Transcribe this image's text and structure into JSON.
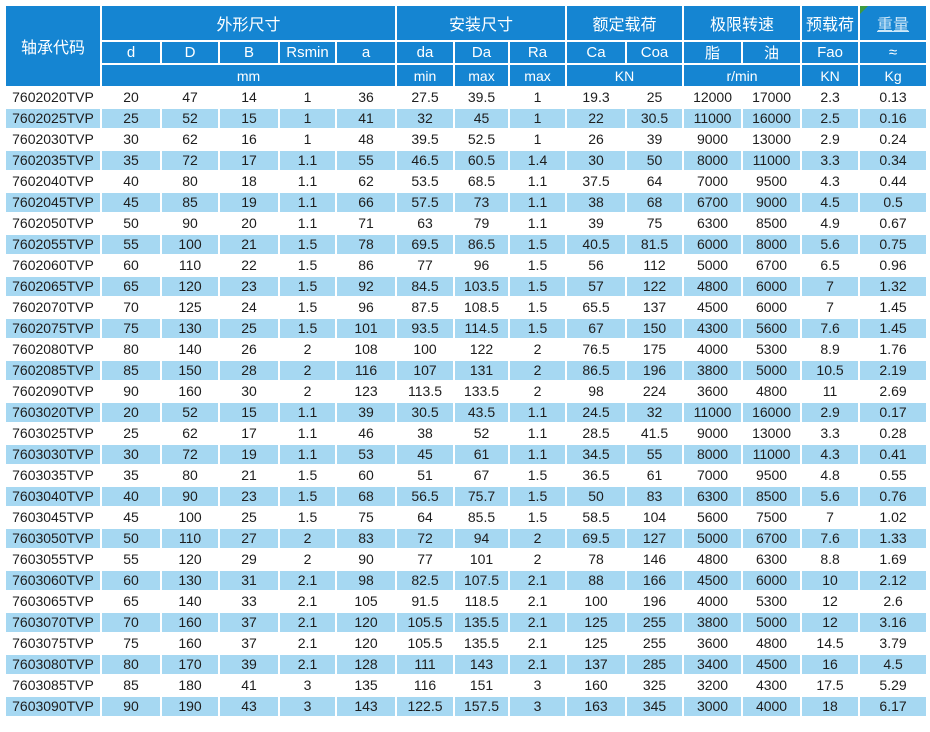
{
  "colors": {
    "header_bg": "#1585d2",
    "row_alt_bg": "#a6d8f2",
    "data_text": "#1d1d1d",
    "weight_link": "#cfe8f8",
    "marker_green": "#3f9b3f"
  },
  "header": {
    "code_label": "轴承代码",
    "groups": [
      {
        "label": "外形尺寸"
      },
      {
        "label": "安装尺寸"
      },
      {
        "label": "额定载荷"
      },
      {
        "label": "极限转速"
      },
      {
        "label": "预载荷"
      },
      {
        "label": "重量"
      }
    ],
    "sub": [
      "d",
      "D",
      "B",
      "Rsmin",
      "a",
      "da",
      "Da",
      "Ra",
      "Ca",
      "Coa",
      "脂",
      "油",
      "Fao",
      "≈"
    ],
    "units": [
      {
        "label": "mm"
      },
      {
        "label": "min"
      },
      {
        "label": "max"
      },
      {
        "label": "max"
      },
      {
        "label": "KN"
      },
      {
        "label": "r/min"
      },
      {
        "label": "KN"
      },
      {
        "label": "Kg"
      }
    ]
  },
  "rows": [
    [
      "7602020TVP",
      "20",
      "47",
      "14",
      "1",
      "36",
      "27.5",
      "39.5",
      "1",
      "19.3",
      "25",
      "12000",
      "17000",
      "2.3",
      "0.13"
    ],
    [
      "7602025TVP",
      "25",
      "52",
      "15",
      "1",
      "41",
      "32",
      "45",
      "1",
      "22",
      "30.5",
      "11000",
      "16000",
      "2.5",
      "0.16"
    ],
    [
      "7602030TVP",
      "30",
      "62",
      "16",
      "1",
      "48",
      "39.5",
      "52.5",
      "1",
      "26",
      "39",
      "9000",
      "13000",
      "2.9",
      "0.24"
    ],
    [
      "7602035TVP",
      "35",
      "72",
      "17",
      "1.1",
      "55",
      "46.5",
      "60.5",
      "1.4",
      "30",
      "50",
      "8000",
      "11000",
      "3.3",
      "0.34"
    ],
    [
      "7602040TVP",
      "40",
      "80",
      "18",
      "1.1",
      "62",
      "53.5",
      "68.5",
      "1.1",
      "37.5",
      "64",
      "7000",
      "9500",
      "4.3",
      "0.44"
    ],
    [
      "7602045TVP",
      "45",
      "85",
      "19",
      "1.1",
      "66",
      "57.5",
      "73",
      "1.1",
      "38",
      "68",
      "6700",
      "9000",
      "4.5",
      "0.5"
    ],
    [
      "7602050TVP",
      "50",
      "90",
      "20",
      "1.1",
      "71",
      "63",
      "79",
      "1.1",
      "39",
      "75",
      "6300",
      "8500",
      "4.9",
      "0.67"
    ],
    [
      "7602055TVP",
      "55",
      "100",
      "21",
      "1.5",
      "78",
      "69.5",
      "86.5",
      "1.5",
      "40.5",
      "81.5",
      "6000",
      "8000",
      "5.6",
      "0.75"
    ],
    [
      "7602060TVP",
      "60",
      "110",
      "22",
      "1.5",
      "86",
      "77",
      "96",
      "1.5",
      "56",
      "112",
      "5000",
      "6700",
      "6.5",
      "0.96"
    ],
    [
      "7602065TVP",
      "65",
      "120",
      "23",
      "1.5",
      "92",
      "84.5",
      "103.5",
      "1.5",
      "57",
      "122",
      "4800",
      "6000",
      "7",
      "1.32"
    ],
    [
      "7602070TVP",
      "70",
      "125",
      "24",
      "1.5",
      "96",
      "87.5",
      "108.5",
      "1.5",
      "65.5",
      "137",
      "4500",
      "6000",
      "7",
      "1.45"
    ],
    [
      "7602075TVP",
      "75",
      "130",
      "25",
      "1.5",
      "101",
      "93.5",
      "114.5",
      "1.5",
      "67",
      "150",
      "4300",
      "5600",
      "7.6",
      "1.45"
    ],
    [
      "7602080TVP",
      "80",
      "140",
      "26",
      "2",
      "108",
      "100",
      "122",
      "2",
      "76.5",
      "175",
      "4000",
      "5300",
      "8.9",
      "1.76"
    ],
    [
      "7602085TVP",
      "85",
      "150",
      "28",
      "2",
      "116",
      "107",
      "131",
      "2",
      "86.5",
      "196",
      "3800",
      "5000",
      "10.5",
      "2.19"
    ],
    [
      "7602090TVP",
      "90",
      "160",
      "30",
      "2",
      "123",
      "113.5",
      "133.5",
      "2",
      "98",
      "224",
      "3600",
      "4800",
      "11",
      "2.69"
    ],
    [
      "7603020TVP",
      "20",
      "52",
      "15",
      "1.1",
      "39",
      "30.5",
      "43.5",
      "1.1",
      "24.5",
      "32",
      "11000",
      "16000",
      "2.9",
      "0.17"
    ],
    [
      "7603025TVP",
      "25",
      "62",
      "17",
      "1.1",
      "46",
      "38",
      "52",
      "1.1",
      "28.5",
      "41.5",
      "9000",
      "13000",
      "3.3",
      "0.28"
    ],
    [
      "7603030TVP",
      "30",
      "72",
      "19",
      "1.1",
      "53",
      "45",
      "61",
      "1.1",
      "34.5",
      "55",
      "8000",
      "11000",
      "4.3",
      "0.41"
    ],
    [
      "7603035TVP",
      "35",
      "80",
      "21",
      "1.5",
      "60",
      "51",
      "67",
      "1.5",
      "36.5",
      "61",
      "7000",
      "9500",
      "4.8",
      "0.55"
    ],
    [
      "7603040TVP",
      "40",
      "90",
      "23",
      "1.5",
      "68",
      "56.5",
      "75.7",
      "1.5",
      "50",
      "83",
      "6300",
      "8500",
      "5.6",
      "0.76"
    ],
    [
      "7603045TVP",
      "45",
      "100",
      "25",
      "1.5",
      "75",
      "64",
      "85.5",
      "1.5",
      "58.5",
      "104",
      "5600",
      "7500",
      "7",
      "1.02"
    ],
    [
      "7603050TVP",
      "50",
      "110",
      "27",
      "2",
      "83",
      "72",
      "94",
      "2",
      "69.5",
      "127",
      "5000",
      "6700",
      "7.6",
      "1.33"
    ],
    [
      "7603055TVP",
      "55",
      "120",
      "29",
      "2",
      "90",
      "77",
      "101",
      "2",
      "78",
      "146",
      "4800",
      "6300",
      "8.8",
      "1.69"
    ],
    [
      "7603060TVP",
      "60",
      "130",
      "31",
      "2.1",
      "98",
      "82.5",
      "107.5",
      "2.1",
      "88",
      "166",
      "4500",
      "6000",
      "10",
      "2.12"
    ],
    [
      "7603065TVP",
      "65",
      "140",
      "33",
      "2.1",
      "105",
      "91.5",
      "118.5",
      "2.1",
      "100",
      "196",
      "4000",
      "5300",
      "12",
      "2.6"
    ],
    [
      "7603070TVP",
      "70",
      "160",
      "37",
      "2.1",
      "120",
      "105.5",
      "135.5",
      "2.1",
      "125",
      "255",
      "3800",
      "5000",
      "12",
      "3.16"
    ],
    [
      "7603075TVP",
      "75",
      "160",
      "37",
      "2.1",
      "120",
      "105.5",
      "135.5",
      "2.1",
      "125",
      "255",
      "3600",
      "4800",
      "14.5",
      "3.79"
    ],
    [
      "7603080TVP",
      "80",
      "170",
      "39",
      "2.1",
      "128",
      "111",
      "143",
      "2.1",
      "137",
      "285",
      "3400",
      "4500",
      "16",
      "4.5"
    ],
    [
      "7603085TVP",
      "85",
      "180",
      "41",
      "3",
      "135",
      "116",
      "151",
      "3",
      "160",
      "325",
      "3200",
      "4300",
      "17.5",
      "5.29"
    ],
    [
      "7603090TVP",
      "90",
      "190",
      "43",
      "3",
      "143",
      "122.5",
      "157.5",
      "3",
      "163",
      "345",
      "3000",
      "4000",
      "18",
      "6.17"
    ]
  ]
}
